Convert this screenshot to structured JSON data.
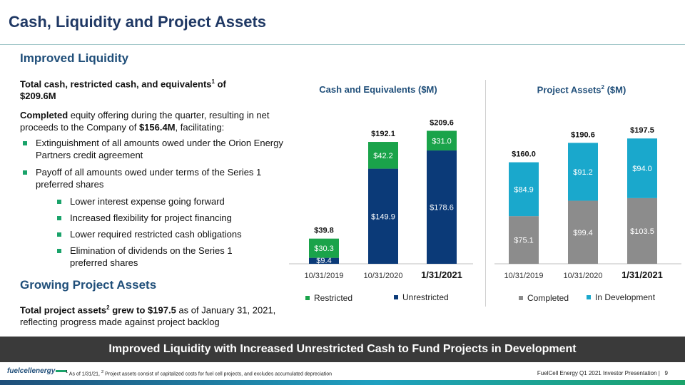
{
  "page": {
    "title": "Cash, Liquidity and Project Assets"
  },
  "left": {
    "liquidity_heading": "Improved Liquidity",
    "total_cash_text": "Total cash, restricted cash, and equivalents",
    "total_cash_sup": "1",
    "total_cash_value": " of $209.6M",
    "offering_bold": "Completed",
    "offering_text": " equity offering during the quarter, resulting in net proceeds to the Company of ",
    "offering_amount": "$156.4M",
    "offering_tail": ", facilitating:",
    "bullets": [
      "Extinguishment of all amounts owed under the Orion Energy Partners credit agreement",
      "Payoff of all amounts owed under terms of the Series 1 preferred shares"
    ],
    "sub_bullets": [
      "Lower interest expense going forward",
      "Increased flexibility for project financing",
      "Lower required restricted cash obligations",
      "Elimination of dividends on the Series 1 preferred shares"
    ],
    "assets_heading": "Growing Project Assets",
    "assets_bold": "Total project assets",
    "assets_sup": "2",
    "assets_bold2": " grew to $197.5",
    "assets_text": " as of January 31, 2021, reflecting progress made against project backlog"
  },
  "chart_data": [
    {
      "type": "bar",
      "stacked": true,
      "title": "Cash and Equivalents ($M)",
      "categories": [
        "10/31/2019",
        "10/31/2020",
        "1/31/2021"
      ],
      "series": [
        {
          "name": "Unrestricted",
          "values": [
            9.4,
            149.9,
            178.6
          ],
          "color": "#0b3a78",
          "labels": [
            "$9.4",
            "$149.9",
            "$178.6"
          ]
        },
        {
          "name": "Restricted",
          "values": [
            30.3,
            42.2,
            31.0
          ],
          "color": "#1aa34a",
          "labels": [
            "$30.3",
            "$42.2",
            "$31.0"
          ]
        }
      ],
      "totals": [
        "$39.8",
        "$192.1",
        "$209.6"
      ],
      "bold_category": "1/31/2021",
      "ylim": [
        0,
        215
      ]
    },
    {
      "type": "bar",
      "stacked": true,
      "title": "Project Assets",
      "title_sup": "2",
      "title_unit": "($M)",
      "categories": [
        "10/31/2019",
        "10/31/2020",
        "1/31/2021"
      ],
      "series": [
        {
          "name": "Completed",
          "values": [
            75.1,
            99.4,
            103.5
          ],
          "color": "#8c8c8c",
          "labels": [
            "$75.1",
            "$99.4",
            "$103.5"
          ]
        },
        {
          "name": "In Development",
          "values": [
            84.9,
            91.2,
            94.0
          ],
          "color": "#1aa8cc",
          "labels": [
            "$84.9",
            "$91.2",
            "$94.0"
          ]
        }
      ],
      "totals": [
        "$160.0",
        "$190.6",
        "$197.5"
      ],
      "bold_category": "1/31/2021",
      "ylim": [
        0,
        215
      ]
    }
  ],
  "legends": {
    "cash": [
      {
        "label": "Restricted",
        "color": "#1aa34a"
      },
      {
        "label": "Unrestricted",
        "color": "#0b3a78"
      }
    ],
    "assets": [
      {
        "label": "Completed",
        "color": "#8c8c8c"
      },
      {
        "label": "In Development",
        "color": "#1aa8cc"
      }
    ]
  },
  "banner": "Improved Liquidity with Increased Unrestricted Cash to Fund Projects in Development",
  "footer": {
    "footnote_sup1": "1",
    "footnote_1": " As of 1/31/21, ",
    "footnote_sup2": "2",
    "footnote_2": " Project assets consist of capitalized costs for fuel cell projects, and excludes accumulated depreciation",
    "presentation": "FuelCell Energy Q1 2021 Investor Presentation |",
    "page_number": "9",
    "logo_text": "fuelcellenergy"
  }
}
